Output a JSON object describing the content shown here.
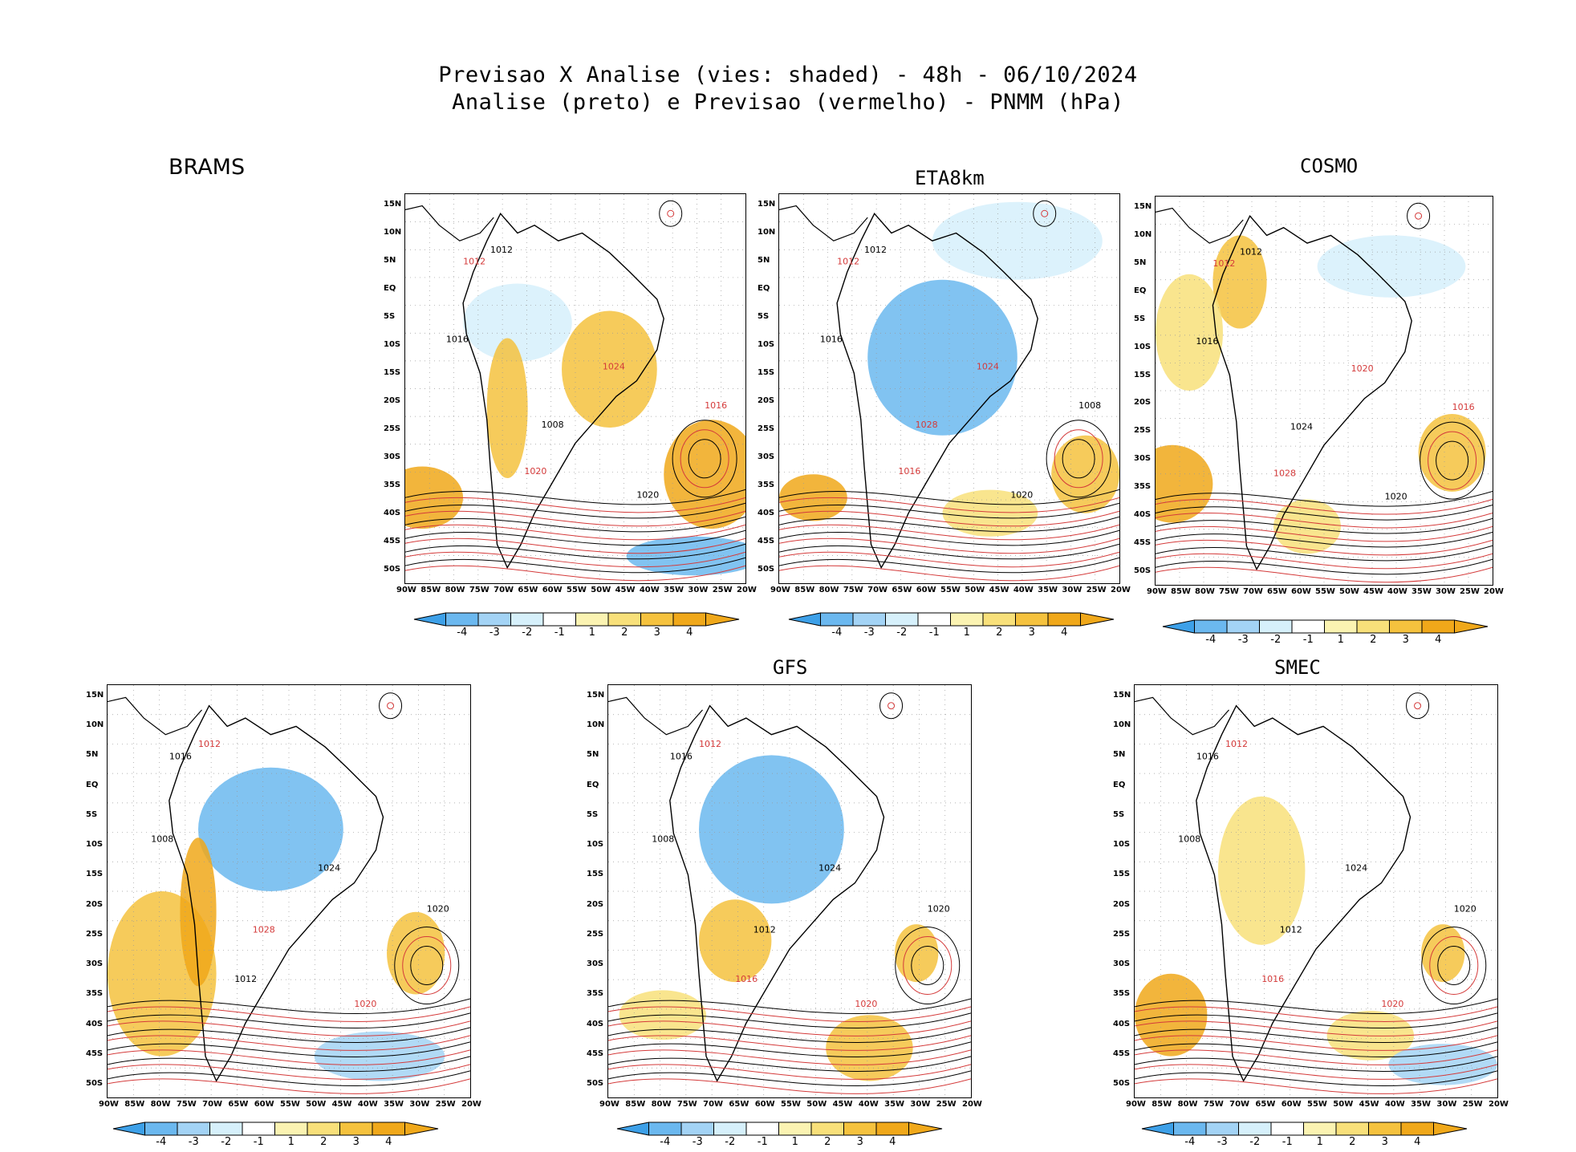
{
  "header": {
    "title_line1": "Previsao X Analise (vies: shaded) - 48h - 06/10/2024",
    "title_line2": "Analise (preto) e Previsao (vermelho) - PNMM (hPa)"
  },
  "axes": {
    "lat_labels": [
      "15N",
      "10N",
      "5N",
      "EQ",
      "5S",
      "10S",
      "15S",
      "20S",
      "25S",
      "30S",
      "35S",
      "40S",
      "45S",
      "50S"
    ],
    "lon_labels": [
      "90W",
      "85W",
      "80W",
      "75W",
      "70W",
      "65W",
      "60W",
      "55W",
      "50W",
      "45W",
      "40W",
      "35W",
      "30W",
      "25W",
      "20W"
    ]
  },
  "colorbar": {
    "labels": [
      "-4",
      "-3",
      "-2",
      "-1",
      "1",
      "2",
      "3",
      "4"
    ],
    "colors": [
      "#3da0e8",
      "#6bb8ef",
      "#a3d3f5",
      "#d6f0fb",
      "#ffffff",
      "#fbf3b2",
      "#f8e07a",
      "#f5c23e",
      "#f0a81a"
    ]
  },
  "panels": [
    {
      "id": "brams-top",
      "label": "BRAMS",
      "contours": [
        {
          "t": "1012",
          "c": "k"
        },
        {
          "t": "1012",
          "c": "r"
        },
        {
          "t": "1016",
          "c": "k"
        },
        {
          "t": "1016",
          "c": "r"
        },
        {
          "t": "1020",
          "c": "k"
        },
        {
          "t": "1024",
          "c": "r"
        },
        {
          "t": "1008",
          "c": "k"
        },
        {
          "t": "1020",
          "c": "r"
        }
      ]
    },
    {
      "id": "eta8km",
      "label": "ETA8km",
      "contours": [
        {
          "t": "1012",
          "c": "k"
        },
        {
          "t": "1012",
          "c": "r"
        },
        {
          "t": "1016",
          "c": "k"
        },
        {
          "t": "1008",
          "c": "k"
        },
        {
          "t": "1020",
          "c": "k"
        },
        {
          "t": "1024",
          "c": "r"
        },
        {
          "t": "1028",
          "c": "r"
        },
        {
          "t": "1016",
          "c": "r"
        }
      ]
    },
    {
      "id": "cosmo",
      "label": "COSMO",
      "contours": [
        {
          "t": "1012",
          "c": "k"
        },
        {
          "t": "1012",
          "c": "r"
        },
        {
          "t": "1016",
          "c": "k"
        },
        {
          "t": "1016",
          "c": "r"
        },
        {
          "t": "1020",
          "c": "k"
        },
        {
          "t": "1020",
          "c": "r"
        },
        {
          "t": "1024",
          "c": "k"
        },
        {
          "t": "1028",
          "c": "r"
        }
      ]
    },
    {
      "id": "brams-bottom",
      "label": "",
      "contours": [
        {
          "t": "1012",
          "c": "r"
        },
        {
          "t": "1016",
          "c": "k"
        },
        {
          "t": "1008",
          "c": "k"
        },
        {
          "t": "1020",
          "c": "k"
        },
        {
          "t": "1020",
          "c": "r"
        },
        {
          "t": "1024",
          "c": "k"
        },
        {
          "t": "1028",
          "c": "r"
        },
        {
          "t": "1012",
          "c": "k"
        }
      ]
    },
    {
      "id": "gfs",
      "label": "GFS",
      "contours": [
        {
          "t": "1012",
          "c": "r"
        },
        {
          "t": "1016",
          "c": "k"
        },
        {
          "t": "1008",
          "c": "k"
        },
        {
          "t": "1020",
          "c": "k"
        },
        {
          "t": "1020",
          "c": "r"
        },
        {
          "t": "1024",
          "c": "k"
        },
        {
          "t": "1012",
          "c": "k"
        },
        {
          "t": "1016",
          "c": "r"
        }
      ]
    },
    {
      "id": "smec",
      "label": "SMEC",
      "contours": [
        {
          "t": "1012",
          "c": "r"
        },
        {
          "t": "1016",
          "c": "k"
        },
        {
          "t": "1008",
          "c": "k"
        },
        {
          "t": "1020",
          "c": "k"
        },
        {
          "t": "1020",
          "c": "r"
        },
        {
          "t": "1024",
          "c": "k"
        },
        {
          "t": "1012",
          "c": "k"
        },
        {
          "t": "1016",
          "c": "r"
        }
      ]
    }
  ]
}
